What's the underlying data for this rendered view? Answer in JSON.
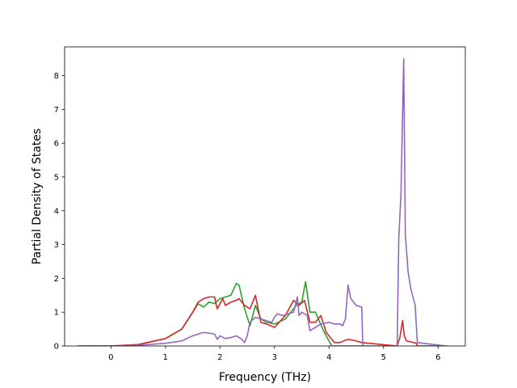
{
  "chart_data": {
    "type": "line",
    "title": "",
    "xlabel": "Frequency (THz)",
    "ylabel": "Partial Density of States",
    "xlim": [
      -0.85,
      6.5
    ],
    "ylim": [
      0,
      8.85
    ],
    "xticks": [
      0,
      1,
      2,
      3,
      4,
      5,
      6
    ],
    "yticks": [
      0,
      1,
      2,
      3,
      4,
      5,
      6,
      7,
      8
    ],
    "grid": false,
    "legend": "none",
    "series": [
      {
        "color": "#2ca02c",
        "x": [
          -0.6,
          0,
          0.5,
          1.0,
          1.3,
          1.5,
          1.6,
          1.7,
          1.8,
          1.9,
          2.0,
          2.1,
          2.2,
          2.3,
          2.35,
          2.45,
          2.55,
          2.65,
          2.75,
          2.85,
          3.0,
          3.2,
          3.4,
          3.5,
          3.57,
          3.65,
          3.75,
          3.9,
          4.0,
          4.05,
          4.6
        ],
        "y": [
          0,
          0,
          0.04,
          0.22,
          0.5,
          1.0,
          1.25,
          1.15,
          1.3,
          1.25,
          1.4,
          1.45,
          1.5,
          1.85,
          1.8,
          1.1,
          0.6,
          1.2,
          0.8,
          0.7,
          0.65,
          0.8,
          1.2,
          1.3,
          1.9,
          1.0,
          1.0,
          0.45,
          0.15,
          0.0,
          0.0
        ]
      },
      {
        "color": "#d62728",
        "x": [
          -0.6,
          0,
          0.5,
          1.0,
          1.3,
          1.5,
          1.6,
          1.7,
          1.8,
          1.9,
          1.95,
          2.05,
          2.1,
          2.2,
          2.3,
          2.35,
          2.45,
          2.55,
          2.65,
          2.75,
          2.85,
          3.0,
          3.2,
          3.35,
          3.45,
          3.55,
          3.65,
          3.75,
          3.85,
          3.95,
          4.1,
          4.2,
          4.35,
          4.5,
          4.6,
          5.25,
          5.3,
          5.35,
          5.38,
          5.42,
          5.5,
          5.6,
          5.62,
          6.0
        ],
        "y": [
          0,
          0,
          0.04,
          0.22,
          0.5,
          1.0,
          1.3,
          1.4,
          1.45,
          1.45,
          1.1,
          1.4,
          1.2,
          1.3,
          1.35,
          1.4,
          1.2,
          1.1,
          1.5,
          0.7,
          0.65,
          0.55,
          0.9,
          1.35,
          1.2,
          1.35,
          0.7,
          0.7,
          0.9,
          0.4,
          0.1,
          0.1,
          0.2,
          0.15,
          0.1,
          0.0,
          0.25,
          0.75,
          0.3,
          0.15,
          0.12,
          0.08,
          0.0,
          0.0
        ]
      },
      {
        "color": "#9467bd",
        "x": [
          -0.6,
          0,
          0.5,
          1.0,
          1.3,
          1.5,
          1.6,
          1.7,
          1.8,
          1.9,
          1.95,
          2.0,
          2.1,
          2.2,
          2.3,
          2.4,
          2.45,
          2.5,
          2.55,
          2.65,
          2.75,
          2.85,
          2.95,
          3.0,
          3.05,
          3.15,
          3.25,
          3.35,
          3.42,
          3.45,
          3.5,
          3.6,
          3.65,
          3.7,
          3.85,
          4.0,
          4.1,
          4.2,
          4.25,
          4.3,
          4.35,
          4.4,
          4.5,
          4.6,
          4.62,
          5.25,
          5.28,
          5.32,
          5.37,
          5.4,
          5.45,
          5.5,
          5.58,
          5.62,
          6.15
        ],
        "y": [
          0,
          0,
          0.02,
          0.08,
          0.15,
          0.3,
          0.35,
          0.4,
          0.38,
          0.35,
          0.2,
          0.3,
          0.22,
          0.25,
          0.3,
          0.2,
          0.1,
          0.3,
          0.7,
          0.85,
          0.8,
          0.75,
          0.7,
          0.85,
          0.95,
          0.9,
          0.95,
          1.0,
          1.45,
          0.9,
          1.0,
          0.9,
          0.45,
          0.5,
          0.65,
          0.7,
          0.65,
          0.65,
          0.6,
          0.8,
          1.8,
          1.4,
          1.2,
          1.15,
          0.0,
          0.0,
          3.2,
          4.5,
          8.5,
          3.3,
          2.2,
          1.7,
          1.2,
          0.1,
          0.0
        ]
      }
    ]
  }
}
